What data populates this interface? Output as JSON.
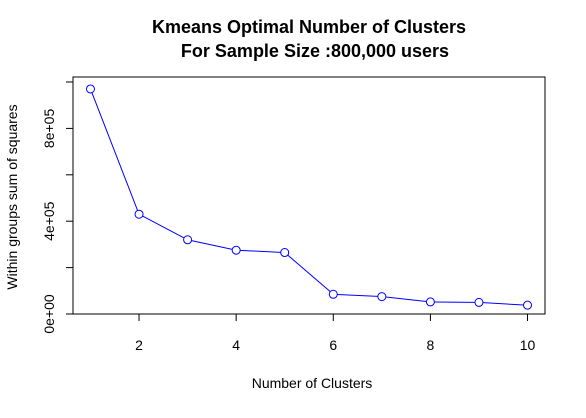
{
  "chart_data": {
    "type": "line",
    "title": [
      "Kmeans Optimal Number of Clusters",
      "For Sample Size :800,000 users"
    ],
    "xlabel": "Number of Clusters",
    "ylabel": "Within groups sum of squares",
    "x": [
      1,
      2,
      3,
      4,
      5,
      6,
      7,
      8,
      9,
      10
    ],
    "series": [
      {
        "values": [
          970000,
          430000,
          320000,
          275000,
          265000,
          85000,
          75000,
          52000,
          50000,
          38000
        ],
        "color": "#0000ff",
        "marker": "open-circle"
      }
    ],
    "x_ticks": [
      2,
      4,
      6,
      8,
      10
    ],
    "x_tick_labels": [
      "2",
      "4",
      "6",
      "8",
      "10"
    ],
    "y_ticks": [
      0,
      200000,
      400000,
      600000,
      800000,
      1000000
    ],
    "y_tick_labels": [
      "0e+00",
      "",
      "4e+05",
      "",
      "8e+05",
      ""
    ],
    "xlim": [
      0.64,
      10.36
    ],
    "ylim": [
      0,
      1000000
    ],
    "grid": false,
    "legend": "none"
  }
}
